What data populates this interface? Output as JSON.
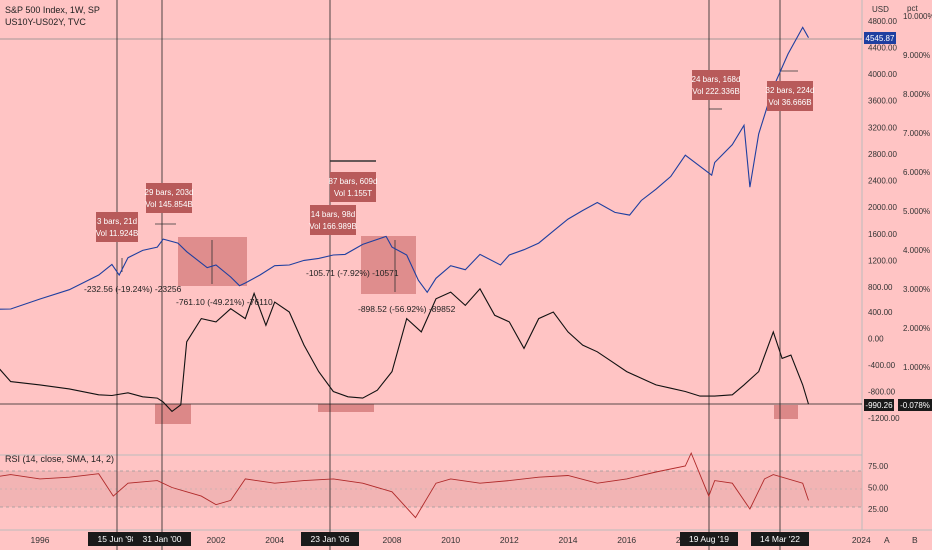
{
  "header": {
    "title_line": "S&P 500 Index, 1W, SP",
    "sub_line": "US10Y-US02Y, TVC",
    "rsi_line": "RSI (14, close, SMA, 14, 2)"
  },
  "axes": {
    "usd_unit": "USD",
    "pct_unit": "pct",
    "usd_ticks": [
      "4800.00",
      "4400.00",
      "4000.00",
      "3600.00",
      "3200.00",
      "2800.00",
      "2400.00",
      "2000.00",
      "1600.00",
      "1200.00",
      "800.00",
      "400.00",
      "0.00",
      "-400.00",
      "-800.00",
      "-1200.00"
    ],
    "pct_ticks": [
      "10.000%",
      "9.000%",
      "8.000%",
      "7.000%",
      "6.000%",
      "5.000%",
      "4.000%",
      "3.000%",
      "2.000%",
      "1.000%"
    ],
    "rsi_ticks": [
      "75.00",
      "50.00",
      "25.00"
    ],
    "x_ticks": [
      "1996",
      "2002",
      "2004",
      "2008",
      "2010",
      "2012",
      "2014",
      "2016",
      "2018",
      "2024"
    ],
    "x_event_labels": [
      "15 Jun '98",
      "31 Jan '00",
      "23 Jan '06",
      "19 Aug '19",
      "14 Mar '22"
    ],
    "corner_a": "A",
    "corner_b": "B"
  },
  "price_badges": {
    "spx": "4545.87",
    "spread_usd": "-990.26",
    "spread_pct": "-0.078%"
  },
  "annotations": [
    {
      "l1": "3 bars, 21d",
      "l2": "Vol 11.924B"
    },
    {
      "l1": "29 bars, 203d",
      "l2": "Vol 145.854B"
    },
    {
      "l1": "14 bars, 98d",
      "l2": "Vol 166.989B"
    },
    {
      "l1": "87 bars, 609d",
      "l2": "Vol 1.155T"
    },
    {
      "l1": "24 bars, 168d",
      "l2": "Vol 222.336B"
    },
    {
      "l1": "32 bars, 224d",
      "l2": "Vol 36.666B"
    }
  ],
  "measurements": [
    "-232.56 (-19.24%) -23256",
    "-761.10 (-49.21%) -76110",
    "-105.71 (-7.92%) -10571",
    "-898.52 (-56.92%) -89852"
  ],
  "colors": {
    "background": "#ffc4c4",
    "spx_line": "#1f3fa0",
    "spread_line": "#111111",
    "rsi_line": "#b02a2a",
    "box_fill": "#c46060",
    "annotation_bg": "#b85a5a",
    "badge_blue": "#1f3fa0",
    "badge_dark": "#1a1a1a"
  },
  "chart_data": [
    {
      "type": "line",
      "name": "S&P 500 Index",
      "x": [
        1994.0,
        1995.0,
        1996.0,
        1997.0,
        1998.0,
        1998.45,
        1998.7,
        1999.0,
        1999.5,
        2000.0,
        2000.2,
        2000.7,
        2001.0,
        2001.7,
        2002.0,
        2002.5,
        2002.8,
        2003.0,
        2003.5,
        2004.0,
        2004.5,
        2005.0,
        2005.5,
        2006.0,
        2006.4,
        2007.0,
        2007.8,
        2008.0,
        2008.5,
        2008.9,
        2009.2,
        2009.5,
        2010.0,
        2010.5,
        2011.0,
        2011.7,
        2012.0,
        2012.5,
        2013.0,
        2013.5,
        2014.0,
        2014.5,
        2015.0,
        2015.6,
        2016.1,
        2016.5,
        2017.0,
        2017.5,
        2018.0,
        2018.9,
        2019.0,
        2019.6,
        2020.0,
        2020.2,
        2020.5,
        2021.0,
        2021.5,
        2022.0,
        2022.2
      ],
      "y": [
        460,
        470,
        620,
        760,
        980,
        1140,
        980,
        1240,
        1350,
        1400,
        1520,
        1460,
        1330,
        1090,
        1130,
        950,
        820,
        860,
        980,
        1120,
        1130,
        1200,
        1230,
        1280,
        1290,
        1440,
        1560,
        1400,
        1280,
        900,
        720,
        930,
        1120,
        1060,
        1290,
        1130,
        1280,
        1360,
        1460,
        1640,
        1820,
        1950,
        2070,
        1920,
        1880,
        2100,
        2270,
        2460,
        2780,
        2480,
        2670,
        2940,
        3230,
        2300,
        3100,
        3800,
        4300,
        4700,
        4545.87
      ]
    },
    {
      "type": "line",
      "name": "US10Y-US02Y",
      "x": [
        1994.0,
        1994.5,
        1995.0,
        1996.0,
        1997.0,
        1998.0,
        1998.45,
        1999.0,
        1999.5,
        2000.0,
        2000.2,
        2000.5,
        2000.8,
        2001.0,
        2001.5,
        2002.0,
        2002.5,
        2003.0,
        2003.3,
        2003.7,
        2004.0,
        2004.5,
        2005.0,
        2005.5,
        2006.0,
        2006.5,
        2007.0,
        2007.5,
        2008.0,
        2008.5,
        2009.0,
        2009.5,
        2010.0,
        2010.5,
        2011.0,
        2011.5,
        2012.0,
        2012.5,
        2013.0,
        2013.5,
        2014.0,
        2014.5,
        2015.0,
        2015.5,
        2016.0,
        2016.5,
        2017.0,
        2017.5,
        2018.0,
        2018.5,
        2019.0,
        2019.6,
        2020.0,
        2020.5,
        2021.0,
        2021.3,
        2021.6,
        2022.0,
        2022.2
      ],
      "y": [
        0,
        -400,
        -650,
        -700,
        -760,
        -850,
        -860,
        -820,
        -880,
        -900,
        -960,
        -1100,
        -1000,
        -50,
        300,
        250,
        450,
        300,
        680,
        200,
        550,
        400,
        -100,
        -500,
        -800,
        -880,
        -900,
        -780,
        -500,
        300,
        100,
        600,
        700,
        500,
        750,
        350,
        250,
        -150,
        300,
        400,
        100,
        -100,
        -200,
        -350,
        -500,
        -600,
        -700,
        -750,
        -800,
        -870,
        -870,
        -850,
        -700,
        -500,
        100,
        -300,
        -250,
        -700,
        -990.26
      ]
    },
    {
      "type": "line",
      "name": "RSI (14, close, SMA, 14, 2)",
      "x": [
        1994.0,
        1995.0,
        1996.0,
        1997.0,
        1998.0,
        1998.5,
        1999.0,
        2000.0,
        2000.5,
        2001.0,
        2001.5,
        2002.0,
        2002.5,
        2003.0,
        2004.0,
        2005.0,
        2006.0,
        2007.0,
        2008.0,
        2008.8,
        2009.5,
        2010.0,
        2011.0,
        2012.0,
        2013.0,
        2014.0,
        2015.0,
        2016.0,
        2017.0,
        2018.0,
        2018.2,
        2018.8,
        2019.0,
        2019.6,
        2020.2,
        2020.7,
        2021.0,
        2022.0,
        2022.2
      ],
      "y": [
        60,
        65,
        60,
        62,
        66,
        40,
        55,
        58,
        50,
        45,
        40,
        30,
        35,
        60,
        55,
        58,
        60,
        55,
        45,
        15,
        55,
        60,
        55,
        58,
        62,
        64,
        55,
        60,
        68,
        75,
        90,
        40,
        58,
        55,
        25,
        60,
        65,
        55,
        35
      ],
      "ylim": [
        0,
        100
      ],
      "bands": [
        30,
        70
      ]
    }
  ]
}
